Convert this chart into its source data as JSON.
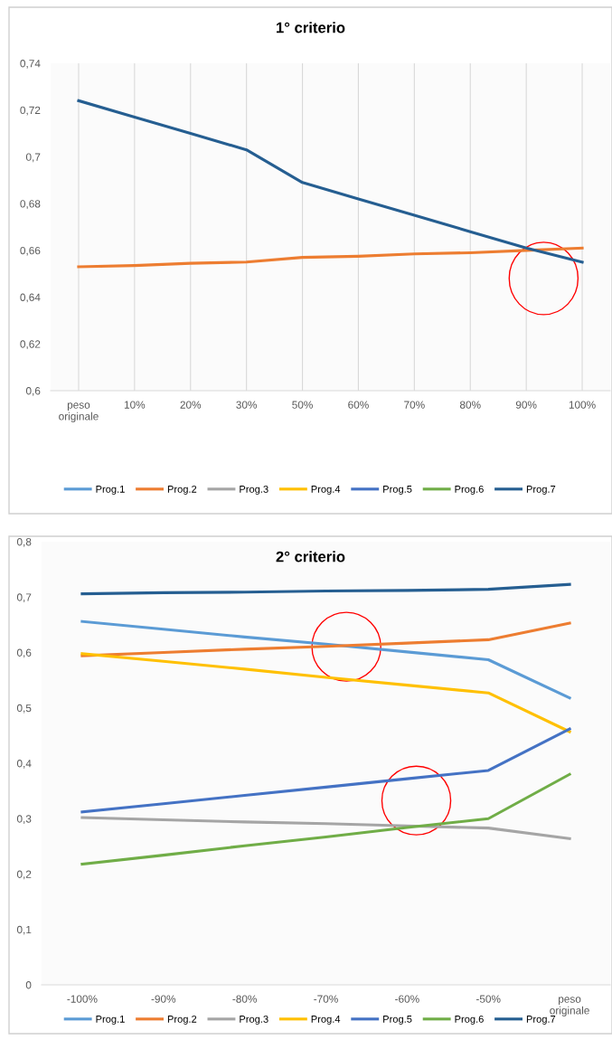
{
  "chart_data": [
    {
      "type": "line",
      "title": "1° criterio",
      "categories": [
        "peso originale",
        "10%",
        "20%",
        "30%",
        "50%",
        "60%",
        "70%",
        "80%",
        "90%",
        "100%"
      ],
      "series": [
        {
          "name": "Prog.1",
          "color": "#5b9bd5",
          "values": [
            null,
            null,
            null,
            null,
            null,
            null,
            null,
            null,
            null,
            null
          ]
        },
        {
          "name": "Prog.2",
          "color": "#ed7d31",
          "values": [
            0.653,
            0.6535,
            0.6545,
            0.655,
            0.657,
            0.6575,
            0.6585,
            0.659,
            0.66,
            0.661
          ]
        },
        {
          "name": "Prog.3",
          "color": "#a5a5a5",
          "values": [
            null,
            null,
            null,
            null,
            null,
            null,
            null,
            null,
            null,
            null
          ]
        },
        {
          "name": "Prog.4",
          "color": "#ffc000",
          "values": [
            null,
            null,
            null,
            null,
            null,
            null,
            null,
            null,
            null,
            null
          ]
        },
        {
          "name": "Prog.5",
          "color": "#4472c4",
          "values": [
            null,
            null,
            null,
            null,
            null,
            null,
            null,
            null,
            null,
            null
          ]
        },
        {
          "name": "Prog.6",
          "color": "#70ad47",
          "values": [
            null,
            null,
            null,
            null,
            null,
            null,
            null,
            null,
            null,
            null
          ]
        },
        {
          "name": "Prog.7",
          "color": "#255e91",
          "values": [
            0.724,
            0.717,
            0.71,
            0.703,
            0.689,
            0.682,
            0.675,
            0.668,
            0.661,
            0.655
          ]
        }
      ],
      "ylim": [
        0.6,
        0.74
      ],
      "yticks": [
        {
          "value": 0.6,
          "label": "0,6"
        },
        {
          "value": 0.62,
          "label": "0,62"
        },
        {
          "value": 0.64,
          "label": "0,64"
        },
        {
          "value": 0.66,
          "label": "0,66"
        },
        {
          "value": 0.68,
          "label": "0,68"
        },
        {
          "value": 0.7,
          "label": "0,7"
        },
        {
          "value": 0.72,
          "label": "0,72"
        },
        {
          "value": 0.74,
          "label": "0,74"
        }
      ],
      "grid": "x",
      "legend": "bottom",
      "marker": "none",
      "line_style": "solid"
    },
    {
      "type": "line",
      "title": "2° criterio",
      "categories": [
        "-100%",
        "-90%",
        "-80%",
        "-70%",
        "-60%",
        "-50%",
        "peso originale"
      ],
      "series": [
        {
          "name": "Prog.1",
          "color": "#5b9bd5",
          "values": [
            0.656,
            0.642,
            0.628,
            0.615,
            0.601,
            0.587,
            0.518
          ]
        },
        {
          "name": "Prog.2",
          "color": "#ed7d31",
          "values": [
            0.594,
            0.6,
            0.606,
            0.611,
            0.617,
            0.623,
            0.653
          ]
        },
        {
          "name": "Prog.3",
          "color": "#a5a5a5",
          "values": [
            0.302,
            0.298,
            0.294,
            0.291,
            0.287,
            0.283,
            0.264
          ]
        },
        {
          "name": "Prog.4",
          "color": "#ffc000",
          "values": [
            0.598,
            0.584,
            0.57,
            0.555,
            0.541,
            0.527,
            0.457
          ]
        },
        {
          "name": "Prog.5",
          "color": "#4472c4",
          "values": [
            0.312,
            0.327,
            0.342,
            0.357,
            0.372,
            0.387,
            0.462
          ]
        },
        {
          "name": "Prog.6",
          "color": "#70ad47",
          "values": [
            0.218,
            0.234,
            0.251,
            0.267,
            0.284,
            0.3,
            0.38
          ]
        },
        {
          "name": "Prog.7",
          "color": "#255e91",
          "values": [
            0.706,
            0.708,
            0.709,
            0.711,
            0.712,
            0.714,
            0.723
          ]
        }
      ],
      "ylim": [
        0,
        0.8
      ],
      "yticks": [
        {
          "value": 0,
          "label": "0"
        },
        {
          "value": 0.1,
          "label": "0,1"
        },
        {
          "value": 0.2,
          "label": "0,2"
        },
        {
          "value": 0.3,
          "label": "0,3"
        },
        {
          "value": 0.4,
          "label": "0,4"
        },
        {
          "value": 0.5,
          "label": "0,5"
        },
        {
          "value": 0.6,
          "label": "0,6"
        },
        {
          "value": 0.7,
          "label": "0,7"
        },
        {
          "value": 0.8,
          "label": "0,8"
        }
      ],
      "grid": false,
      "legend": "bottom",
      "marker": "none",
      "line_style": "solid"
    }
  ]
}
